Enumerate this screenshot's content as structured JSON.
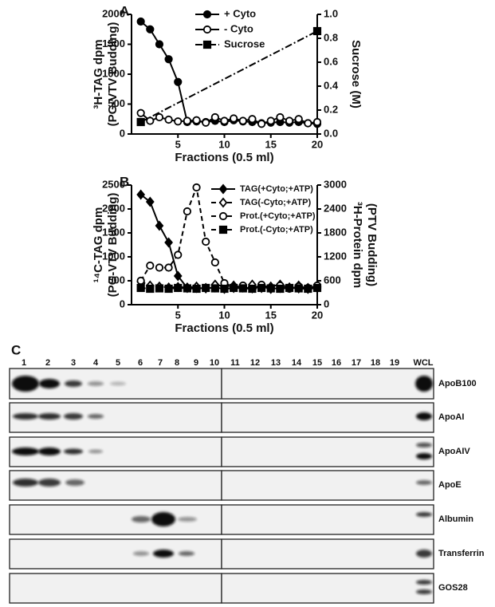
{
  "chart_data": [
    {
      "type": "line",
      "panel_label": "A",
      "xlabel": "Fractions (0.5 ml)",
      "ylabel": [
        "³H-TAG dpm",
        "(PG-VTV Budding)"
      ],
      "y2label": [
        "Sucrose (M)"
      ],
      "x": [
        1,
        2,
        3,
        4,
        5,
        6,
        7,
        8,
        9,
        10,
        11,
        12,
        13,
        14,
        15,
        16,
        17,
        18,
        19,
        20
      ],
      "xlim": [
        0,
        20
      ],
      "xticks": [
        5,
        10,
        15,
        20
      ],
      "ylim": [
        0,
        2000
      ],
      "yticks": [
        0,
        500,
        1000,
        1500,
        2000
      ],
      "y2lim": [
        0,
        1.0
      ],
      "y2ticks": [
        {
          "value": 0,
          "label": "0.0"
        },
        0.2,
        0.4,
        0.6,
        0.8,
        {
          "value": 1.0,
          "label": "1.0"
        }
      ],
      "series": [
        {
          "name": "+ Cyto",
          "color": "#000000",
          "marker": "circle",
          "fill": "filled",
          "dash": "solid",
          "values": [
            1880,
            1750,
            1500,
            1250,
            870,
            200,
            210,
            200,
            220,
            200,
            230,
            210,
            200,
            180,
            190,
            200,
            190,
            200,
            180,
            170
          ]
        },
        {
          "name": "- Cyto",
          "color": "#000000",
          "marker": "circle",
          "fill": "open",
          "dash": "solid",
          "values": [
            350,
            220,
            280,
            240,
            210,
            220,
            230,
            190,
            280,
            220,
            260,
            220,
            250,
            170,
            220,
            280,
            220,
            250,
            180,
            200
          ]
        },
        {
          "name": "Sucrose",
          "color": "#000000",
          "marker": "square",
          "fill": "filled",
          "dash": "dashdot",
          "axis": "y2",
          "x": [
            1,
            20
          ],
          "values": [
            0.1,
            0.86
          ]
        }
      ]
    },
    {
      "type": "line",
      "panel_label": "B",
      "xlabel": "Fractions (0.5 ml)",
      "ylabel": [
        "¹⁴C-TAG dpm",
        "(PG-VTV Budding)"
      ],
      "y2label": [
        "³H-Protein dpm",
        "(PTV Budding)"
      ],
      "x": [
        1,
        2,
        3,
        4,
        5,
        6,
        7,
        8,
        9,
        10,
        11,
        12,
        13,
        14,
        15,
        16,
        17,
        18,
        19,
        20
      ],
      "xlim": [
        0,
        20
      ],
      "xticks": [
        5,
        10,
        15,
        20
      ],
      "ylim": [
        0,
        2500
      ],
      "yticks": [
        0,
        500,
        1000,
        1500,
        2000,
        2500
      ],
      "y2lim": [
        0,
        3000
      ],
      "y2ticks": [
        0,
        600,
        1200,
        1800,
        2400,
        3000
      ],
      "series": [
        {
          "name": "TAG(+Cyto;+ATP)",
          "color": "#000000",
          "marker": "diamond",
          "fill": "filled",
          "dash": "solid",
          "values": [
            2300,
            2150,
            1650,
            1300,
            600,
            350,
            350,
            340,
            360,
            330,
            350,
            360,
            340,
            380,
            330,
            350,
            360,
            340,
            330,
            350
          ]
        },
        {
          "name": "TAG(-Cyto;+ATP)",
          "color": "#000000",
          "marker": "diamond",
          "fill": "open",
          "dash": "dashed",
          "values": [
            480,
            400,
            380,
            360,
            370,
            360,
            380,
            350,
            420,
            380,
            400,
            360,
            420,
            350,
            380,
            420,
            360,
            400,
            350,
            380
          ]
        },
        {
          "name": "Prot.(+Cyto;+ATP)",
          "color": "#000000",
          "marker": "circle",
          "fill": "open",
          "dash": "dashed",
          "axis": "y2",
          "values": [
            600,
            980,
            930,
            930,
            1250,
            2340,
            2940,
            1580,
            1060,
            540,
            450,
            480,
            400,
            500,
            420,
            480,
            400,
            460,
            420,
            480
          ]
        },
        {
          "name": "Prot.(-Cyto;+ATP)",
          "color": "#000000",
          "marker": "square",
          "fill": "filled",
          "dash": "dashed",
          "axis": "y2",
          "values": [
            420,
            400,
            410,
            400,
            420,
            410,
            400,
            420,
            410,
            400,
            420,
            410,
            400,
            420,
            410,
            400,
            420,
            410,
            400,
            420
          ]
        }
      ]
    }
  ],
  "blot": {
    "panel_label": "C",
    "lanes": [
      "1",
      "2",
      "3",
      "4",
      "5",
      "6",
      "7",
      "8",
      "9",
      "10",
      "11",
      "12",
      "13",
      "14",
      "15",
      "16",
      "17",
      "18",
      "19",
      "WCL"
    ],
    "proteins": [
      "ApoB100",
      "ApoAI",
      "ApoAIV",
      "ApoE",
      "Albumin",
      "Transferrin",
      "GOS28"
    ]
  }
}
